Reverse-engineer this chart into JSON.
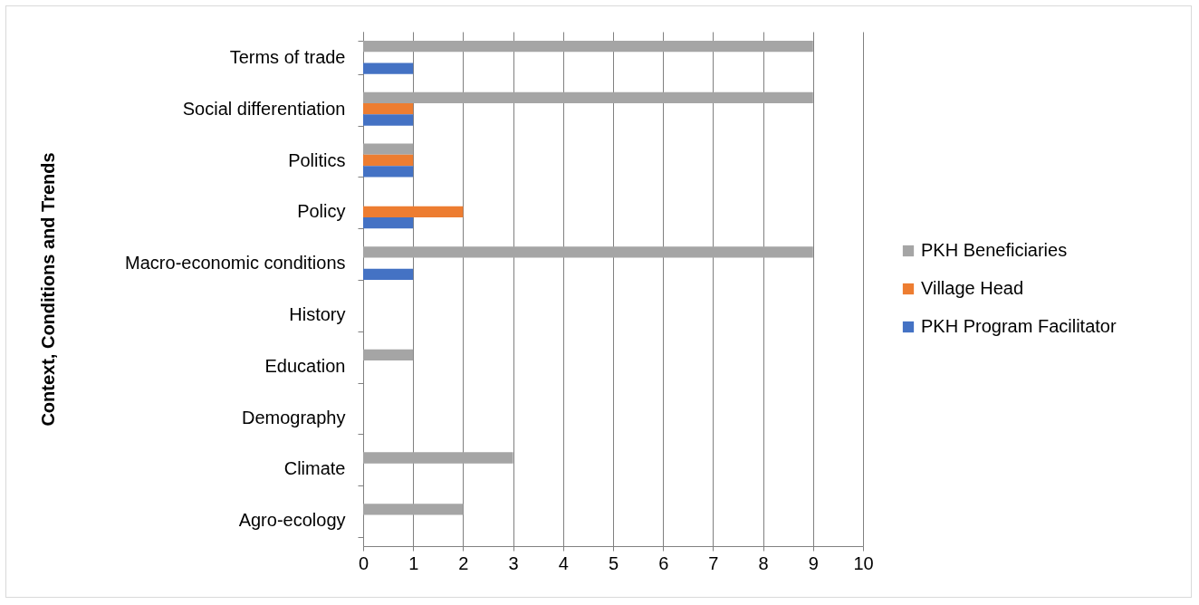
{
  "chart_data": {
    "type": "bar",
    "orientation": "horizontal",
    "ylabel": "Context, Conditions and Trends",
    "categories": [
      "Terms of trade",
      "Social differentiation",
      "Politics",
      "Policy",
      "Macro-economic conditions",
      "History",
      "Education",
      "Demography",
      "Climate",
      "Agro-ecology"
    ],
    "series": [
      {
        "name": "PKH Beneficiaries",
        "color": "#a5a5a5",
        "values": [
          9,
          9,
          1,
          0,
          9,
          0,
          1,
          0,
          3,
          2
        ]
      },
      {
        "name": "Village Head",
        "color": "#ed7d31",
        "values": [
          0,
          1,
          1,
          2,
          0,
          0,
          0,
          0,
          0,
          0
        ]
      },
      {
        "name": "PKH Program Facilitator",
        "color": "#4472c4",
        "values": [
          1,
          1,
          1,
          1,
          1,
          0,
          0,
          0,
          0,
          0
        ]
      }
    ],
    "xlim": [
      0,
      10
    ],
    "xticks": [
      0,
      1,
      2,
      3,
      4,
      5,
      6,
      7,
      8,
      9,
      10
    ],
    "grid": "x",
    "legend": "right"
  }
}
